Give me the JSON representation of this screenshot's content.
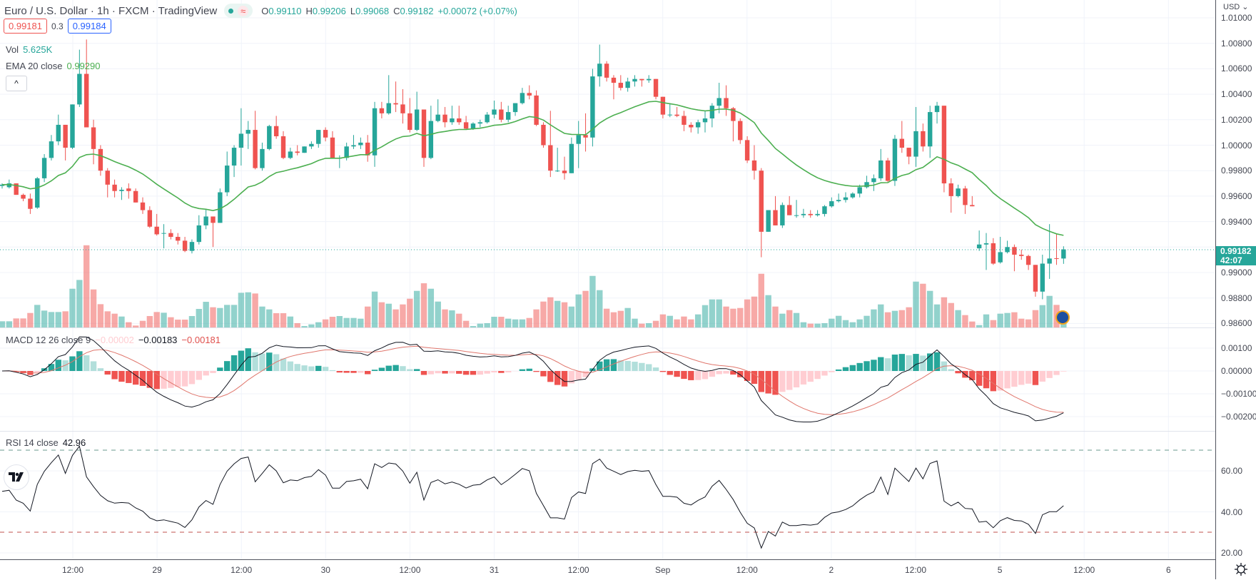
{
  "header": {
    "title": "Euro / U.S. Dollar · 1h · FXCM · TradingView",
    "status_icon": "market-open-dot",
    "wave_icon": "≈",
    "ohlc": {
      "o_label": "O",
      "o": "0.99110",
      "h_label": "H",
      "h": "0.99206",
      "l_label": "L",
      "l": "0.99068",
      "c_label": "C",
      "c": "0.99182",
      "change": "+0.00072 (+0.07%)"
    },
    "bid": "0.99181",
    "spread": "0.3",
    "ask": "0.99184",
    "collapse_icon": "^"
  },
  "legends": {
    "vol_label": "Vol",
    "vol_value": "5.625K",
    "ema_label": "EMA 20 close",
    "ema_value": "0.99290",
    "macd_label": "MACD 12 26 close 9",
    "macd_hist": "−0.00002",
    "macd_line": "−0.00183",
    "macd_signal": "−0.00181",
    "rsi_label": "RSI 14 close",
    "rsi_value": "42.96"
  },
  "price_axis": {
    "currency": "USD ⌄",
    "ticks": [
      "1.01000",
      "1.00800",
      "1.00600",
      "1.00400",
      "1.00200",
      "1.00000",
      "0.99800",
      "0.99600",
      "0.99400",
      "0.99000",
      "0.98800",
      "0.98600"
    ],
    "last_price": "0.99182",
    "countdown": "42:07"
  },
  "macd_axis": {
    "ticks": [
      "0.00100",
      "0.00000",
      "−0.00100",
      "−0.00200"
    ]
  },
  "rsi_axis": {
    "ticks": [
      "60.00",
      "40.00",
      "20.00"
    ],
    "upper_band": 70,
    "lower_band": 30
  },
  "time_axis": {
    "labels": [
      "12:00",
      "29",
      "12:00",
      "30",
      "12:00",
      "31",
      "12:00",
      "Sep",
      "12:00",
      "2",
      "12:00",
      "5",
      "12:00",
      "6"
    ]
  },
  "colors": {
    "up": "#26a69a",
    "down": "#ef5350",
    "ema": "#4caf50",
    "macd": "#131722",
    "signal": "#e0766c",
    "grid": "#f0f3fa"
  },
  "chart_data": {
    "type": "candlestick",
    "title": "Euro / U.S. Dollar · 1h · FXCM",
    "ylim": [
      0.986,
      1.01
    ],
    "indicators": [
      "Volume",
      "EMA 20 close",
      "MACD 12 26 close 9",
      "RSI 14 close"
    ],
    "ohlc": [
      [
        0.9968,
        0.997,
        0.9966,
        0.9969
      ],
      [
        0.9967,
        0.9973,
        0.9966,
        0.997
      ],
      [
        0.997,
        0.997,
        0.9961,
        0.9961
      ],
      [
        0.9961,
        0.9962,
        0.9956,
        0.9958
      ],
      [
        0.9958,
        0.9962,
        0.9946,
        0.995
      ],
      [
        0.9951,
        0.9975,
        0.995,
        0.9974
      ],
      [
        0.9974,
        0.9993,
        0.9971,
        0.999
      ],
      [
        0.999,
        1.0008,
        0.9988,
        1.0003
      ],
      [
        1.0003,
        1.0024,
        1.0,
        1.0016
      ],
      [
        1.0016,
        1.0016,
        0.9988,
        0.9998
      ],
      [
        0.9998,
        1.0032,
        0.9997,
        1.0032
      ],
      [
        1.0032,
        1.0075,
        1.003,
        1.0056
      ],
      [
        1.0056,
        1.0083,
        1.0014,
        1.0014
      ],
      [
        1.0014,
        1.002,
        0.9985,
        0.9997
      ],
      [
        0.9997,
        1.0,
        0.9976,
        0.998
      ],
      [
        0.998,
        0.9982,
        0.9959,
        0.9969
      ],
      [
        0.9969,
        0.9973,
        0.9959,
        0.9964
      ],
      [
        0.9964,
        0.9967,
        0.9957,
        0.9965
      ],
      [
        0.9966,
        0.997,
        0.9958,
        0.9964
      ],
      [
        0.9964,
        0.9966,
        0.9955,
        0.9955
      ],
      [
        0.9955,
        0.9959,
        0.9946,
        0.9949
      ],
      [
        0.9949,
        0.9952,
        0.9935,
        0.9936
      ],
      [
        0.9936,
        0.9946,
        0.9929,
        0.993
      ],
      [
        0.9931,
        0.9938,
        0.9919,
        0.9931
      ],
      [
        0.9931,
        0.9934,
        0.9926,
        0.9928
      ],
      [
        0.9928,
        0.9931,
        0.9922,
        0.9925
      ],
      [
        0.9925,
        0.9928,
        0.9916,
        0.9917
      ],
      [
        0.9917,
        0.9926,
        0.9915,
        0.9924
      ],
      [
        0.9924,
        0.9945,
        0.9922,
        0.9937
      ],
      [
        0.9937,
        0.995,
        0.9934,
        0.9944
      ],
      [
        0.9944,
        0.9944,
        0.992,
        0.9939
      ],
      [
        0.9939,
        0.9966,
        0.9939,
        0.9963
      ],
      [
        0.9963,
        0.9995,
        0.996,
        0.9984
      ],
      [
        0.9984,
        1.0,
        0.9975,
        0.9998
      ],
      [
        0.9998,
        1.0029,
        0.9984,
        1.0009
      ],
      [
        1.0009,
        1.0019,
        0.9997,
        1.0012
      ],
      [
        1.0012,
        1.0027,
        0.9981,
        0.9982
      ],
      [
        0.9982,
        1.0002,
        0.998,
        0.9997
      ],
      [
        0.9997,
        1.0016,
        0.9996,
        1.0015
      ],
      [
        1.0015,
        1.0023,
        1.0005,
        1.0007
      ],
      [
        1.0007,
        1.0011,
        0.9989,
        0.999
      ],
      [
        0.999,
        0.9998,
        0.9989,
        0.9995
      ],
      [
        0.9995,
        1.0,
        0.9992,
        0.9994
      ],
      [
        0.9994,
        0.9999,
        0.9994,
        0.9999
      ],
      [
        0.9999,
        1.0003,
        0.9997,
        1.0001
      ],
      [
        1.0001,
        1.0012,
        0.9998,
        1.0012
      ],
      [
        1.0012,
        1.0014,
        1.0003,
        1.0006
      ],
      [
        1.0006,
        1.0011,
        0.999,
        0.999
      ],
      [
        0.999,
        0.9992,
        0.9982,
        0.999
      ],
      [
        0.999,
        1.0002,
        0.9988,
        0.9999
      ],
      [
        0.9999,
        1.0008,
        0.9997,
        1.0
      ],
      [
        1.0,
        1.0006,
        0.9997,
        1.0002
      ],
      [
        1.0002,
        1.0008,
        0.9987,
        0.9992
      ],
      [
        0.9992,
        1.0034,
        0.9983,
        1.0029
      ],
      [
        1.0029,
        1.0034,
        1.0021,
        1.0025
      ],
      [
        1.0025,
        1.0055,
        1.0024,
        1.0033
      ],
      [
        1.0033,
        1.005,
        1.0026,
        1.0032
      ],
      [
        1.0032,
        1.0044,
        1.0017,
        1.0025
      ],
      [
        1.0025,
        1.0037,
        1.001,
        1.0012
      ],
      [
        1.0012,
        1.0042,
        1.0011,
        1.0028
      ],
      [
        1.0028,
        1.0028,
        0.9983,
        0.999
      ],
      [
        0.999,
        1.0031,
        0.9989,
        1.0019
      ],
      [
        1.0019,
        1.0036,
        1.0018,
        1.0024
      ],
      [
        1.0024,
        1.003,
        1.0014,
        1.0018
      ],
      [
        1.0018,
        1.0031,
        1.0016,
        1.0021
      ],
      [
        1.0021,
        1.0031,
        1.0016,
        1.0018
      ],
      [
        1.0018,
        1.0023,
        1.0012,
        1.0013
      ],
      [
        1.0013,
        1.0018,
        1.0012,
        1.0017
      ],
      [
        1.0017,
        1.002,
        1.0014,
        1.0018
      ],
      [
        1.0018,
        1.0026,
        1.0017,
        1.0024
      ],
      [
        1.0024,
        1.0035,
        1.0021,
        1.0028
      ],
      [
        1.0028,
        1.0034,
        1.0018,
        1.002
      ],
      [
        1.002,
        1.0031,
        1.0018,
        1.0026
      ],
      [
        1.0026,
        1.0033,
        1.0023,
        1.0033
      ],
      [
        1.0033,
        1.0045,
        1.0032,
        1.0041
      ],
      [
        1.0041,
        1.0047,
        1.0036,
        1.0039
      ],
      [
        1.0039,
        1.0043,
        1.0015,
        1.0016
      ],
      [
        1.0016,
        1.0018,
        0.9998,
        1.0
      ],
      [
        1.0,
        1.0027,
        0.9975,
        0.998
      ],
      [
        0.998,
        0.9998,
        0.9979,
        0.998
      ],
      [
        0.998,
        0.9991,
        0.9973,
        0.9978
      ],
      [
        0.9978,
        1.0006,
        0.9978,
        1.0001
      ],
      [
        1.0001,
        1.0019,
        0.9982,
        1.0008
      ],
      [
        1.0008,
        1.0025,
        0.9995,
        1.0006
      ],
      [
        1.0006,
        1.006,
        0.9999,
        1.0054
      ],
      [
        1.0054,
        1.0079,
        1.0046,
        1.0064
      ],
      [
        1.0064,
        1.0066,
        1.005,
        1.0053
      ],
      [
        1.0053,
        1.0055,
        1.0036,
        1.0049
      ],
      [
        1.0049,
        1.0055,
        1.0043,
        1.0045
      ],
      [
        1.0045,
        1.0053,
        1.0042,
        1.005
      ],
      [
        1.005,
        1.0055,
        1.0046,
        1.0052
      ],
      [
        1.0052,
        1.0052,
        1.0046,
        1.0051
      ],
      [
        1.0051,
        1.0055,
        1.0049,
        1.0052
      ],
      [
        1.0052,
        1.0052,
        1.0036,
        1.0038
      ],
      [
        1.0038,
        1.0038,
        1.0021,
        1.0024
      ],
      [
        1.0024,
        1.0033,
        1.0022,
        1.0024
      ],
      [
        1.0024,
        1.003,
        1.0022,
        1.0023
      ],
      [
        1.0023,
        1.0027,
        1.0011,
        1.0016
      ],
      [
        1.0016,
        1.0018,
        1.001,
        1.0014
      ],
      [
        1.0014,
        1.002,
        1.0009,
        1.0018
      ],
      [
        1.0018,
        1.0027,
        1.001,
        1.0021
      ],
      [
        1.0021,
        1.0033,
        1.0014,
        1.0031
      ],
      [
        1.0031,
        1.0049,
        1.0025,
        1.0037
      ],
      [
        1.0037,
        1.0047,
        1.0023,
        1.0029
      ],
      [
        1.0029,
        1.003,
        1.0003,
        1.0019
      ],
      [
        1.0019,
        1.0021,
        1.0001,
        1.0004
      ],
      [
        1.0004,
        1.0007,
        0.9986,
        0.9988
      ],
      [
        0.9988,
        1.0,
        0.9973,
        0.998
      ],
      [
        0.998,
        0.9982,
        0.9912,
        0.9932
      ],
      [
        0.9932,
        0.9949,
        0.9932,
        0.9949
      ],
      [
        0.9949,
        0.996,
        0.9937,
        0.9937
      ],
      [
        0.9937,
        0.9955,
        0.9935,
        0.9953
      ],
      [
        0.9953,
        0.996,
        0.9945,
        0.9945
      ],
      [
        0.9945,
        0.9957,
        0.9943,
        0.9945
      ],
      [
        0.9945,
        0.995,
        0.9943,
        0.9946
      ],
      [
        0.9946,
        0.9949,
        0.9943,
        0.9945
      ],
      [
        0.9945,
        0.9949,
        0.9944,
        0.9946
      ],
      [
        0.9946,
        0.9953,
        0.9944,
        0.9952
      ],
      [
        0.9952,
        0.9959,
        0.9951,
        0.9956
      ],
      [
        0.9956,
        0.9962,
        0.9955,
        0.9957
      ],
      [
        0.9957,
        0.9963,
        0.9955,
        0.9959
      ],
      [
        0.9959,
        0.9963,
        0.9958,
        0.9962
      ],
      [
        0.9962,
        0.9969,
        0.9959,
        0.9967
      ],
      [
        0.9967,
        0.9976,
        0.9966,
        0.9971
      ],
      [
        0.9971,
        0.9977,
        0.9964,
        0.9974
      ],
      [
        0.9974,
        0.9997,
        0.9972,
        0.9988
      ],
      [
        0.9988,
        0.999,
        0.9971,
        0.9972
      ],
      [
        0.9972,
        1.0008,
        0.9968,
        1.0005
      ],
      [
        1.0005,
        1.0019,
        0.9994,
        0.9998
      ],
      [
        0.9998,
        0.9998,
        0.9985,
        0.9991
      ],
      [
        0.9991,
        1.003,
        0.9983,
        1.0011
      ],
      [
        1.0011,
        1.0017,
        0.9995,
        0.9999
      ],
      [
        0.9999,
        1.0031,
        0.999,
        1.0026
      ],
      [
        1.0026,
        1.0034,
        1.0017,
        1.0031
      ],
      [
        1.0031,
        1.0031,
        0.9963,
        0.997
      ],
      [
        0.997,
        0.9974,
        0.9947,
        0.996
      ],
      [
        0.996,
        0.9969,
        0.9959,
        0.9966
      ],
      [
        0.9966,
        0.9968,
        0.9946,
        0.9953
      ],
      [
        0.9953,
        0.996,
        0.9952,
        0.9952
      ],
      [
        0.9919,
        0.9933,
        0.9917,
        0.9922
      ],
      [
        0.9922,
        0.9931,
        0.9902,
        0.9923
      ],
      [
        0.9923,
        0.9927,
        0.9906,
        0.9907
      ],
      [
        0.9908,
        0.9928,
        0.9907,
        0.9916
      ],
      [
        0.9916,
        0.9925,
        0.9915,
        0.992
      ],
      [
        0.992,
        0.9922,
        0.9901,
        0.9914
      ],
      [
        0.9914,
        0.9918,
        0.991,
        0.9913
      ],
      [
        0.9913,
        0.9914,
        0.9902,
        0.9906
      ],
      [
        0.9906,
        0.9906,
        0.9881,
        0.9885
      ],
      [
        0.9885,
        0.9914,
        0.9879,
        0.9907
      ],
      [
        0.9907,
        0.9938,
        0.9895,
        0.9911
      ],
      [
        0.99112,
        0.993,
        0.9906,
        0.9911
      ],
      [
        0.9911,
        0.99206,
        0.99068,
        0.99182
      ]
    ],
    "volume_k": [
      2.6,
      2.6,
      3.8,
      3.8,
      6.1,
      9.5,
      7.1,
      6.5,
      6.5,
      6.8,
      16.3,
      20.0,
      34.6,
      16.0,
      9.8,
      6.8,
      5.8,
      4.6,
      2.2,
      0.8,
      2.8,
      4.8,
      6.5,
      6.2,
      4.3,
      3.3,
      3.3,
      4.8,
      7.8,
      10.8,
      8.5,
      8.2,
      9.5,
      9.5,
      14.6,
      14.8,
      14.3,
      8.8,
      7.6,
      6.0,
      6.0,
      4.6,
      1.8,
      0.6,
      1.3,
      2.2,
      3.4,
      4.5,
      4.8,
      4.0,
      4.0,
      3.7,
      8.8,
      15.1,
      10.6,
      10.0,
      7.6,
      9.7,
      12.1,
      15.4,
      18.6,
      16.3,
      10.9,
      7.6,
      7.2,
      5.8,
      2.8,
      0.6,
      1.6,
      1.8,
      4.5,
      4.5,
      3.7,
      3.4,
      3.4,
      4.0,
      7.6,
      10.9,
      12.7,
      11.2,
      10.6,
      8.8,
      13.9,
      15.4,
      21.7,
      15.7,
      7.9,
      6.4,
      7.0,
      8.2,
      3.7,
      1.6,
      1.8,
      2.8,
      5.5,
      4.9,
      3.4,
      4.6,
      3.4,
      5.5,
      9.4,
      11.8,
      11.8,
      8.8,
      7.9,
      8.2,
      11.8,
      13.0,
      22.6,
      13.6,
      8.8,
      5.8,
      7.3,
      6.1,
      2.2,
      1.6,
      1.6,
      1.8,
      3.7,
      4.9,
      3.1,
      2.2,
      3.4,
      4.9,
      7.6,
      9.7,
      6.4,
      7.0,
      7.3,
      8.5,
      19.3,
      18.4,
      15.4,
      9.7,
      12.7,
      10.3,
      7.3,
      5.2,
      2.5,
      1.0,
      5.5,
      3.1,
      5.8,
      6.1,
      6.4,
      3.7,
      3.4,
      7.3,
      9.4,
      13.3,
      9.5,
      5.625
    ]
  }
}
